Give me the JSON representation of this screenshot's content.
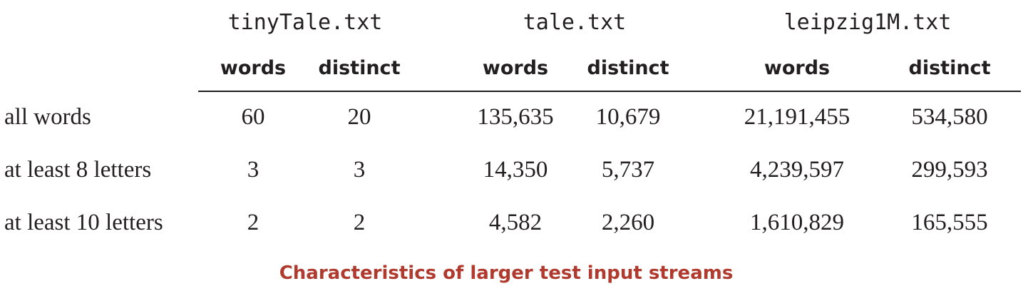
{
  "files": [
    "tinyTale.txt",
    "tale.txt",
    "leipzig1M.txt"
  ],
  "subheaders": [
    "words",
    "distinct",
    "words",
    "distinct",
    "words",
    "distinct"
  ],
  "rows": [
    {
      "label": "all words",
      "values": [
        "60",
        "20",
        "135,635",
        "10,679",
        "21,191,455",
        "534,580"
      ]
    },
    {
      "label": "at least 8 letters",
      "values": [
        "3",
        "3",
        "14,350",
        "5,737",
        "4,239,597",
        "299,593"
      ]
    },
    {
      "label": "at least 10 letters",
      "values": [
        "2",
        "2",
        "4,582",
        "2,260",
        "1,610,829",
        "165,555"
      ]
    }
  ],
  "caption": "Characteristics of larger test input streams",
  "colors": {
    "caption": "#b03a2e",
    "text": "#231f20"
  }
}
